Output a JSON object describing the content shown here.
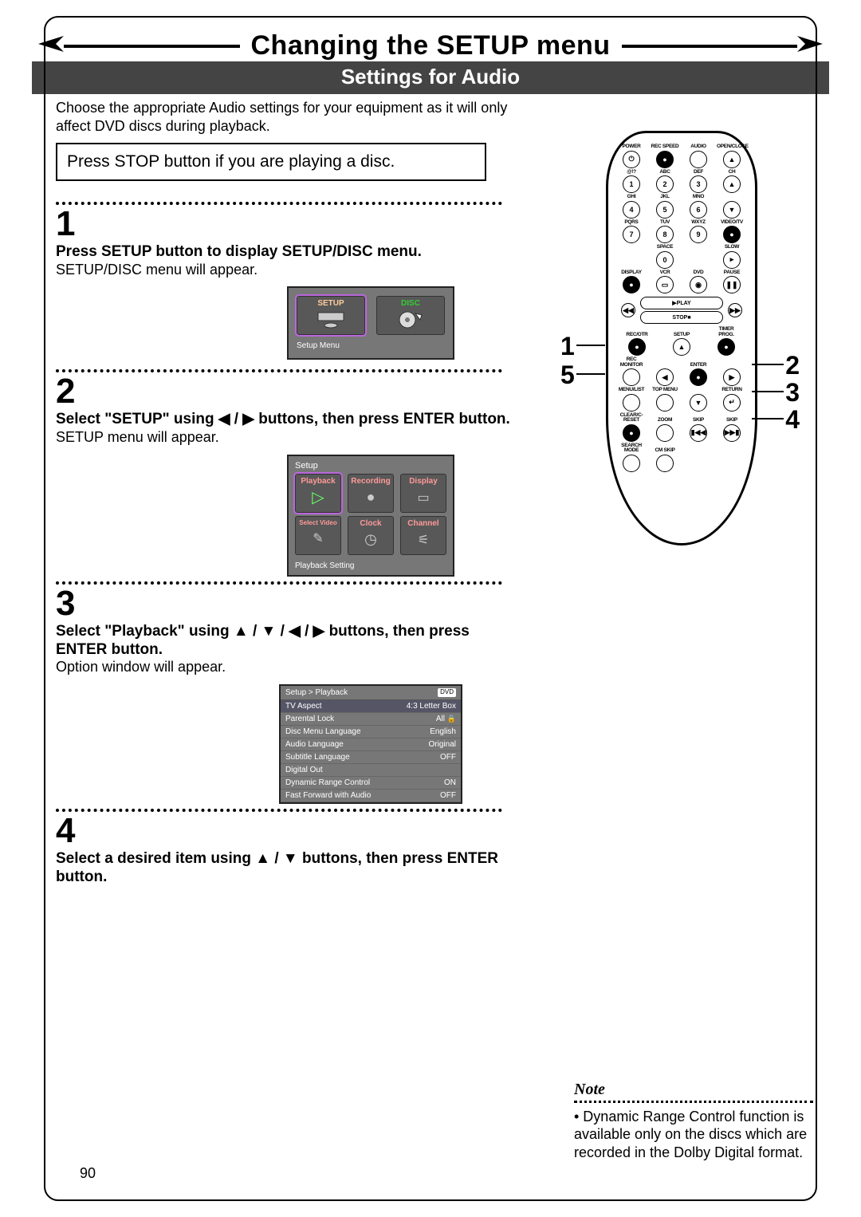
{
  "header": {
    "main_title": "Changing the SETUP menu",
    "subtitle": "Settings for Audio"
  },
  "intro": "Choose the appropriate Audio settings for your equipment as it will only affect DVD discs during playback.",
  "stop_instruction": "Press STOP button if you are playing a disc.",
  "steps": [
    {
      "num": "1",
      "head": "Press SETUP button to display SETUP/DISC menu.",
      "body": "SETUP/DISC menu will appear.",
      "screen": {
        "tiles": [
          {
            "label": "SETUP",
            "label_color": "#fc9"
          },
          {
            "label": "DISC",
            "label_color": "#3c3"
          }
        ],
        "caption": "Setup Menu"
      }
    },
    {
      "num": "2",
      "head_parts": [
        "Select \"SETUP\" using ",
        "◀",
        " / ",
        "▶",
        " buttons, then press ENTER button."
      ],
      "body": "SETUP menu will appear.",
      "screen": {
        "title": "Setup",
        "row1": [
          {
            "label": "Playback",
            "icon": "▷"
          },
          {
            "label": "Recording",
            "icon": "●"
          },
          {
            "label": "Display",
            "icon": "▭"
          }
        ],
        "row2": [
          {
            "label": "Select Video",
            "icon": "✎"
          },
          {
            "label": "Clock",
            "icon": "◷"
          },
          {
            "label": "Channel",
            "icon": "⚟"
          }
        ],
        "caption": "Playback Setting"
      }
    },
    {
      "num": "3",
      "head_parts": [
        "Select \"Playback\" using ",
        "▲",
        " / ",
        "▼",
        " / ",
        "◀",
        " / ",
        "▶",
        " buttons, then press ENTER button."
      ],
      "body": "Option window will appear.",
      "screen": {
        "breadcrumb": "Setup > Playback",
        "pill": "DVD",
        "rows": [
          {
            "k": "TV Aspect",
            "v": "4:3 Letter Box",
            "hl": true
          },
          {
            "k": "Parental Lock",
            "v": "All",
            "lock": true
          },
          {
            "k": "Disc Menu Language",
            "v": "English"
          },
          {
            "k": "Audio Language",
            "v": "Original"
          },
          {
            "k": "Subtitle Language",
            "v": "OFF"
          },
          {
            "k": "Digital Out",
            "v": ""
          },
          {
            "k": "Dynamic Range Control",
            "v": "ON"
          },
          {
            "k": "Fast Forward with Audio",
            "v": "OFF"
          }
        ]
      }
    },
    {
      "num": "4",
      "head_parts": [
        "Select a desired item using ",
        "▲",
        " / ",
        "▼",
        " buttons, then press ENTER button."
      ],
      "body": ""
    }
  ],
  "remote": {
    "callouts_left": [
      "1",
      "5"
    ],
    "callouts_right": [
      "2",
      "3",
      "4"
    ],
    "rows": [
      [
        {
          "l": "POWER",
          "g": "⏻"
        },
        {
          "l": "REC SPEED",
          "g": "●",
          "solid": true
        },
        {
          "l": "AUDIO",
          "g": ""
        },
        {
          "l": "OPEN/CLOSE",
          "g": "▲"
        }
      ],
      [
        {
          "l": "@!?",
          "g": "1"
        },
        {
          "l": "ABC",
          "g": "2"
        },
        {
          "l": "DEF",
          "g": "3"
        },
        {
          "l": "CH",
          "g": "▲"
        }
      ],
      [
        {
          "l": "GHI",
          "g": "4"
        },
        {
          "l": "JKL",
          "g": "5"
        },
        {
          "l": "MNO",
          "g": "6"
        },
        {
          "l": "",
          "g": "▼"
        }
      ],
      [
        {
          "l": "PQRS",
          "g": "7"
        },
        {
          "l": "TUV",
          "g": "8"
        },
        {
          "l": "WXYZ",
          "g": "9"
        },
        {
          "l": "VIDEO/TV",
          "g": "●",
          "solid": true
        }
      ],
      [
        {
          "l": "",
          "g": ""
        },
        {
          "l": "SPACE",
          "g": "0"
        },
        {
          "l": "",
          "g": ""
        },
        {
          "l": "SLOW",
          "g": "▸"
        }
      ],
      [
        {
          "l": "DISPLAY",
          "g": "●",
          "solid": true
        },
        {
          "l": "VCR",
          "g": "▭"
        },
        {
          "l": "DVD",
          "g": "◉"
        },
        {
          "l": "PAUSE",
          "g": "❚❚"
        }
      ]
    ],
    "play_label": "PLAY",
    "stop_label": "STOP",
    "rwd": "◀◀",
    "fwd": "▶▶",
    "mid_rows": [
      [
        {
          "l": "REC/OTR",
          "g": "●",
          "solid": true
        },
        {
          "l": "SETUP",
          "g": "▲"
        },
        {
          "l": "TIMER PROG.",
          "g": "●",
          "solid": true
        }
      ],
      [
        {
          "l": "REC MONITOR",
          "g": ""
        },
        {
          "l": "",
          "g": "◀"
        },
        {
          "l": "ENTER",
          "g": "●",
          "solid": true
        },
        {
          "l": "",
          "g": "▶"
        }
      ],
      [
        {
          "l": "MENU/LIST",
          "g": ""
        },
        {
          "l": "TOP MENU",
          "g": ""
        },
        {
          "l": "",
          "g": "▼"
        },
        {
          "l": "RETURN",
          "g": "↵"
        }
      ],
      [
        {
          "l": "CLEAR/C-RESET",
          "g": "●",
          "solid": true
        },
        {
          "l": "ZOOM",
          "g": ""
        },
        {
          "l": "SKIP",
          "g": "▮◀◀"
        },
        {
          "l": "SKIP",
          "g": "▶▶▮"
        }
      ],
      [
        {
          "l": "SEARCH MODE",
          "g": ""
        },
        {
          "l": "CM SKIP",
          "g": ""
        },
        {
          "l": "",
          "g": ""
        },
        {
          "l": "",
          "g": ""
        }
      ]
    ]
  },
  "note": {
    "title": "Note",
    "body": "• Dynamic Range Control function is available only on the discs which are recorded in the Dolby Digital format."
  },
  "page_number": "90"
}
